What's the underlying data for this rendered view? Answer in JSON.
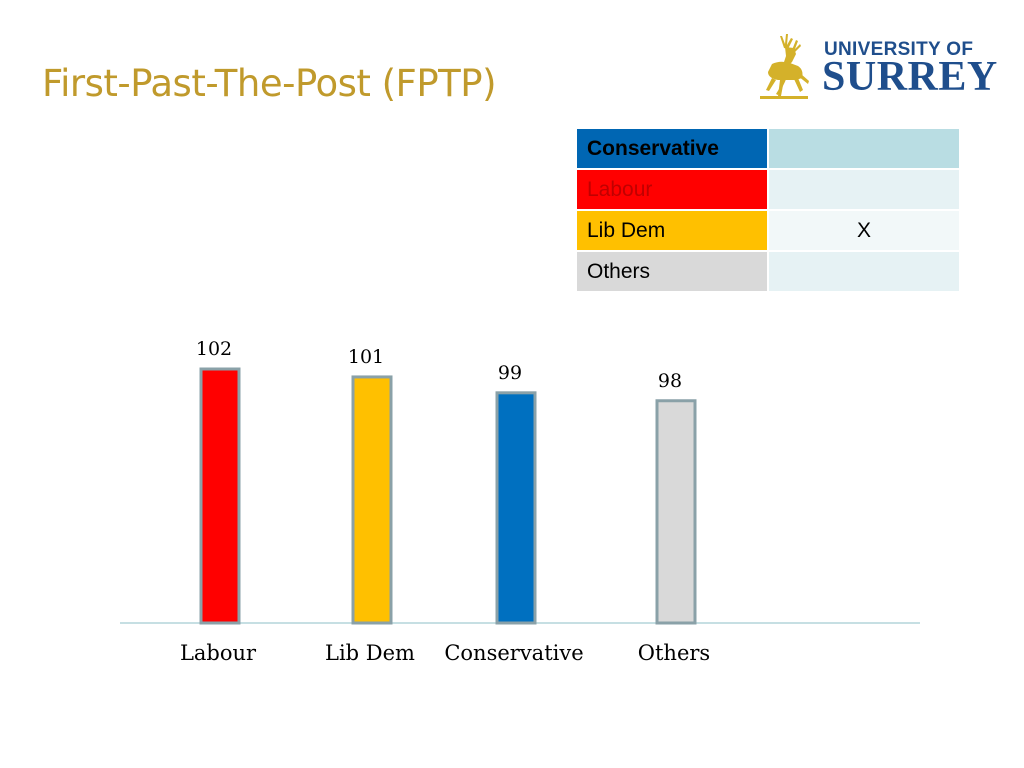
{
  "slide": {
    "title": "First-Past-The-Post (FPTP)"
  },
  "logo": {
    "line1": "UNIVERSITY OF",
    "line2": "SURREY",
    "icon": "stag-icon",
    "color": "#1f4e8c",
    "icon_color": "#d4b12a"
  },
  "ballot": {
    "rows": [
      {
        "party": "Conservative",
        "mark": "",
        "party_bg": "#0066b3",
        "party_color": "#000000",
        "bold": true,
        "mark_bg": "#b9dde3"
      },
      {
        "party": "Labour",
        "mark": "",
        "party_bg": "#ff0000",
        "party_color": "#c00000",
        "bold": false,
        "mark_bg": "#e6f2f4"
      },
      {
        "party": "Lib Dem",
        "mark": "X",
        "party_bg": "#ffc000",
        "party_color": "#000000",
        "bold": false,
        "mark_bg": "#f2f8f9"
      },
      {
        "party": "Others",
        "mark": "",
        "party_bg": "#d9d9d9",
        "party_color": "#000000",
        "bold": false,
        "mark_bg": "#e6f2f4"
      }
    ]
  },
  "chart_data": {
    "type": "bar",
    "categories": [
      "Labour",
      "Lib Dem",
      "Conservative",
      "Others"
    ],
    "values": [
      102,
      101,
      99,
      98
    ],
    "colors": [
      "#ff0000",
      "#ffc000",
      "#0070c0",
      "#d9d9d9"
    ],
    "data_labels": [
      "102",
      "101",
      "99",
      "98"
    ],
    "title": "",
    "xlabel": "",
    "ylabel": "",
    "ylim": [
      70,
      102
    ],
    "grid": false,
    "legend": "none",
    "axis_color": "#c6dfe3",
    "bar_border_color": "#8aa1a8"
  }
}
